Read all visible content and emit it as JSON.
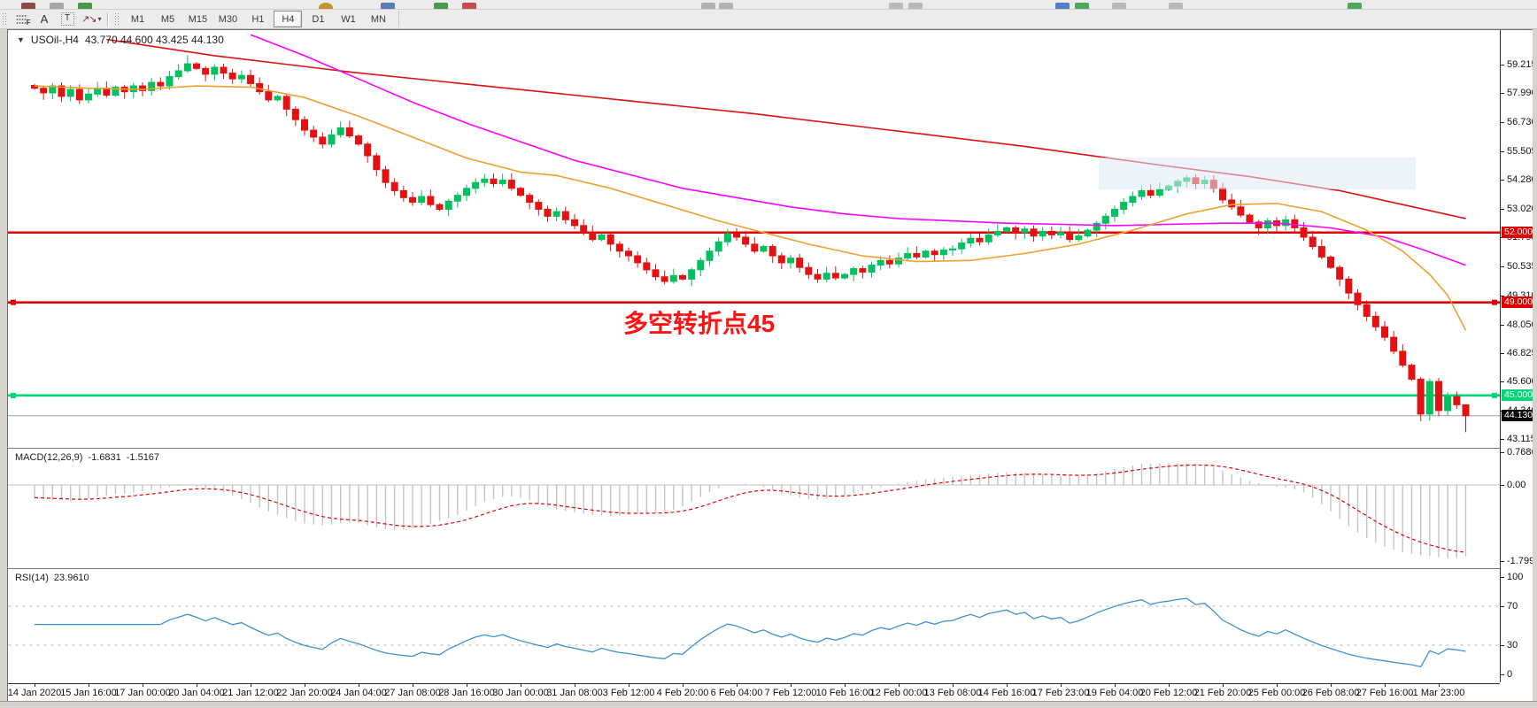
{
  "toolbar": {
    "drawing_tools": [
      {
        "name": "fibonacci-retracement",
        "glyph": "F"
      },
      {
        "name": "text",
        "glyph": "A"
      },
      {
        "name": "text-label",
        "glyph": "T"
      },
      {
        "name": "arrows",
        "glyph": "▾"
      }
    ],
    "timeframes": [
      {
        "label": "M1",
        "active": false
      },
      {
        "label": "M5",
        "active": false
      },
      {
        "label": "M15",
        "active": false
      },
      {
        "label": "M30",
        "active": false
      },
      {
        "label": "H1",
        "active": false
      },
      {
        "label": "H4",
        "active": true
      },
      {
        "label": "D1",
        "active": false
      },
      {
        "label": "W1",
        "active": false
      },
      {
        "label": "MN",
        "active": false
      }
    ]
  },
  "chart": {
    "symbol_period": "USOil-,H4",
    "ohlc": "43.770 44.600 43.425 44.130",
    "annotation": {
      "text": "多空转折点45",
      "color": "#ff1212"
    }
  },
  "chart_data": {
    "type": "candlestick",
    "symbol": "USOil-",
    "period": "H4",
    "y_range": [
      42.75,
      60.7
    ],
    "price_axis_ticks": [
      59.215,
      57.99,
      56.73,
      55.505,
      54.28,
      53.02,
      51.795,
      50.535,
      49.31,
      48.05,
      46.825,
      45.6,
      44.34,
      43.115
    ],
    "time_labels": [
      "14 Jan 2020",
      "15 Jan 16:00",
      "17 Jan 00:00",
      "20 Jan 04:00",
      "21 Jan 12:00",
      "22 Jan 20:00",
      "24 Jan 04:00",
      "27 Jan 08:00",
      "28 Jan 16:00",
      "30 Jan 00:00",
      "31 Jan 08:00",
      "3 Feb 12:00",
      "4 Feb 20:00",
      "6 Feb 04:00",
      "7 Feb 12:00",
      "10 Feb 16:00",
      "12 Feb 00:00",
      "13 Feb 08:00",
      "14 Feb 16:00",
      "17 Feb 23:00",
      "19 Feb 04:00",
      "20 Feb 12:00",
      "21 Feb 20:00",
      "25 Feb 00:00",
      "26 Feb 08:00",
      "27 Feb 16:00",
      "1 Mar 23:00"
    ],
    "candle_colors": {
      "up": "#00c060",
      "down": "#e31212"
    },
    "closes": [
      58.2,
      58.0,
      58.3,
      57.85,
      58.15,
      57.7,
      57.95,
      58.2,
      57.9,
      58.25,
      58.05,
      58.3,
      58.1,
      58.45,
      58.3,
      58.7,
      58.95,
      59.25,
      59.05,
      58.8,
      59.1,
      58.85,
      58.6,
      58.75,
      58.4,
      58.05,
      57.7,
      57.85,
      57.3,
      56.85,
      56.4,
      56.1,
      55.8,
      56.2,
      56.5,
      56.15,
      55.8,
      55.3,
      54.7,
      54.15,
      53.8,
      53.5,
      53.3,
      53.55,
      53.2,
      53.0,
      53.35,
      53.6,
      53.9,
      54.15,
      54.3,
      54.1,
      54.25,
      53.9,
      53.6,
      53.3,
      53.0,
      52.7,
      52.9,
      52.55,
      52.3,
      52.0,
      51.7,
      51.9,
      51.5,
      51.2,
      51.0,
      50.7,
      50.4,
      50.1,
      49.9,
      50.15,
      50.0,
      50.4,
      50.8,
      51.2,
      51.6,
      51.95,
      51.8,
      51.5,
      51.2,
      51.4,
      51.0,
      50.7,
      50.9,
      50.5,
      50.2,
      50.0,
      50.25,
      50.05,
      50.2,
      50.45,
      50.3,
      50.6,
      50.8,
      50.65,
      50.9,
      51.1,
      50.95,
      51.2,
      51.05,
      51.25,
      51.3,
      51.55,
      51.75,
      51.6,
      51.9,
      52.05,
      52.2,
      52.0,
      52.15,
      51.85,
      52.05,
      51.9,
      52.0,
      51.7,
      51.85,
      52.1,
      52.4,
      52.7,
      53.0,
      53.3,
      53.55,
      53.8,
      53.6,
      53.85,
      54.0,
      54.2,
      54.35,
      54.1,
      54.25,
      53.9,
      53.4,
      53.1,
      52.75,
      52.45,
      52.2,
      52.5,
      52.3,
      52.55,
      52.2,
      51.8,
      51.4,
      50.95,
      50.5,
      50.0,
      49.4,
      48.9,
      48.4,
      47.95,
      47.5,
      46.9,
      46.3,
      45.7,
      44.2,
      45.6,
      44.35,
      44.95,
      44.6,
      44.13
    ],
    "last_bar": {
      "open": 43.77,
      "high": 44.6,
      "low": 43.425,
      "close": 44.13
    },
    "moving_averages": [
      {
        "name": "ma-slow",
        "color": "#dd1111",
        "points": [
          [
            8,
            60.3
          ],
          [
            20,
            59.6
          ],
          [
            35,
            58.9
          ],
          [
            50,
            58.3
          ],
          [
            65,
            57.7
          ],
          [
            80,
            57.1
          ],
          [
            95,
            56.4
          ],
          [
            110,
            55.7
          ],
          [
            125,
            54.9
          ],
          [
            135,
            54.4
          ],
          [
            145,
            53.8
          ],
          [
            152,
            53.2
          ],
          [
            159,
            52.6
          ]
        ]
      },
      {
        "name": "ma-mid",
        "color": "#ff00ff",
        "points": [
          [
            24,
            60.5
          ],
          [
            30,
            59.6
          ],
          [
            36,
            58.6
          ],
          [
            42,
            57.6
          ],
          [
            48,
            56.7
          ],
          [
            54,
            55.9
          ],
          [
            60,
            55.1
          ],
          [
            66,
            54.5
          ],
          [
            72,
            53.9
          ],
          [
            78,
            53.5
          ],
          [
            84,
            53.1
          ],
          [
            90,
            52.8
          ],
          [
            96,
            52.6
          ],
          [
            102,
            52.5
          ],
          [
            108,
            52.4
          ],
          [
            114,
            52.35
          ],
          [
            120,
            52.3
          ],
          [
            126,
            52.35
          ],
          [
            132,
            52.4
          ],
          [
            138,
            52.4
          ],
          [
            144,
            52.2
          ],
          [
            150,
            51.8
          ],
          [
            154,
            51.3
          ],
          [
            159,
            50.6
          ]
        ]
      },
      {
        "name": "ma-fast",
        "color": "#f0a030",
        "points": [
          [
            0,
            58.3
          ],
          [
            6,
            58.2
          ],
          [
            12,
            58.15
          ],
          [
            18,
            58.3
          ],
          [
            24,
            58.25
          ],
          [
            30,
            57.8
          ],
          [
            36,
            57.0
          ],
          [
            42,
            56.1
          ],
          [
            48,
            55.2
          ],
          [
            54,
            54.6
          ],
          [
            58,
            54.45
          ],
          [
            64,
            53.9
          ],
          [
            70,
            53.2
          ],
          [
            76,
            52.5
          ],
          [
            80,
            52.1
          ],
          [
            86,
            51.5
          ],
          [
            92,
            51.0
          ],
          [
            98,
            50.75
          ],
          [
            104,
            50.8
          ],
          [
            110,
            51.1
          ],
          [
            116,
            51.5
          ],
          [
            122,
            52.1
          ],
          [
            128,
            52.8
          ],
          [
            133,
            53.2
          ],
          [
            138,
            53.25
          ],
          [
            143,
            52.9
          ],
          [
            148,
            52.1
          ],
          [
            152,
            51.2
          ],
          [
            155,
            50.2
          ],
          [
            157,
            49.3
          ],
          [
            159,
            47.8
          ]
        ]
      }
    ],
    "hlines": [
      {
        "price": 52.0,
        "label": "52.000",
        "color": "#e00000",
        "handles": false
      },
      {
        "price": 49.0,
        "label": "49.000",
        "color": "#e00000",
        "handles": true
      },
      {
        "price": 45.0,
        "label": "45.000",
        "color": "#00d678",
        "handles": true
      }
    ],
    "current_price": {
      "value": 44.13,
      "label": "44.130",
      "line_color": "#9aa0a6",
      "badge_bg": "#0a0a0a"
    },
    "macd": {
      "name": "MACD(12,26,9)",
      "value_main": "-1.6831",
      "value_signal": "-1.5167",
      "axis_ticks": [
        "0.7686",
        "0.00",
        "-1.7999"
      ],
      "bar_color": "#c4c4c4",
      "signal_color": "#e00000",
      "values": [
        -0.3,
        -0.33,
        -0.36,
        -0.34,
        -0.38,
        -0.35,
        -0.32,
        -0.28,
        -0.25,
        -0.22,
        -0.2,
        -0.18,
        -0.15,
        -0.12,
        -0.08,
        -0.05,
        -0.02,
        0.0,
        -0.04,
        -0.08,
        -0.12,
        -0.18,
        -0.25,
        -0.33,
        -0.42,
        -0.52,
        -0.62,
        -0.7,
        -0.78,
        -0.85,
        -0.9,
        -0.93,
        -0.95,
        -0.93,
        -0.9,
        -0.88,
        -0.9,
        -0.95,
        -1.0,
        -1.04,
        -1.06,
        -1.05,
        -1.02,
        -0.98,
        -0.92,
        -0.85,
        -0.78,
        -0.7,
        -0.6,
        -0.5,
        -0.4,
        -0.33,
        -0.28,
        -0.27,
        -0.3,
        -0.36,
        -0.44,
        -0.52,
        -0.58,
        -0.62,
        -0.65,
        -0.68,
        -0.7,
        -0.72,
        -0.73,
        -0.72,
        -0.7,
        -0.68,
        -0.66,
        -0.65,
        -0.63,
        -0.58,
        -0.5,
        -0.4,
        -0.28,
        -0.17,
        -0.08,
        -0.02,
        0.02,
        0.03,
        0.0,
        -0.05,
        -0.12,
        -0.2,
        -0.26,
        -0.3,
        -0.33,
        -0.34,
        -0.32,
        -0.28,
        -0.24,
        -0.19,
        -0.14,
        -0.09,
        -0.05,
        -0.01,
        0.03,
        0.07,
        0.1,
        0.13,
        0.15,
        0.17,
        0.19,
        0.21,
        0.23,
        0.25,
        0.27,
        0.29,
        0.3,
        0.3,
        0.29,
        0.27,
        0.25,
        0.23,
        0.21,
        0.2,
        0.21,
        0.24,
        0.28,
        0.33,
        0.38,
        0.42,
        0.46,
        0.49,
        0.5,
        0.51,
        0.52,
        0.52,
        0.51,
        0.49,
        0.46,
        0.41,
        0.34,
        0.26,
        0.18,
        0.1,
        0.04,
        0.0,
        -0.04,
        -0.06,
        -0.1,
        -0.18,
        -0.3,
        -0.45,
        -0.62,
        -0.8,
        -0.97,
        -1.12,
        -1.25,
        -1.36,
        -1.45,
        -1.52,
        -1.58,
        -1.62,
        -1.65,
        -1.67,
        -1.7,
        -1.73,
        -1.72,
        -1.6831
      ]
    },
    "rsi": {
      "name": "RSI(14)",
      "value": "23.9610",
      "period": 14,
      "axis_ticks": [
        100,
        70,
        30,
        0
      ],
      "levels": [
        70,
        30
      ],
      "line_color": "#3f92d2",
      "level_color": "#bfbfbf"
    }
  }
}
